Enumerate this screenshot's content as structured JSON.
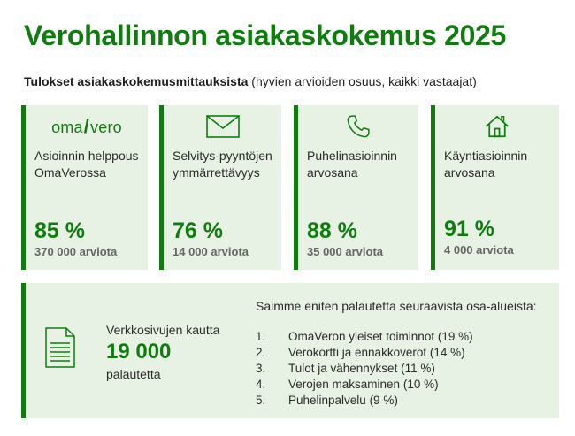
{
  "title": "Verohallinnon asiakaskokemus 2025",
  "subtitle": {
    "bold": "Tulokset asiakaskokemusmittauksista",
    "rest": " (hyvien arvioiden osuus, kaikki vastaajat)"
  },
  "cards": [
    {
      "icon": "omavero-logo",
      "logo_text": {
        "left": "oma",
        "slash": "/",
        "right": "vero"
      },
      "label": "Asioinnin helppous OmaVerossa",
      "percent": "85 %",
      "count": "370 000 arviota"
    },
    {
      "icon": "envelope-icon",
      "label": "Selvitys-pyyntöjen ymmärrettävyys",
      "percent": "76 %",
      "count": "14 000 arviota"
    },
    {
      "icon": "phone-icon",
      "label": "Puhelinasioinnin arvosana",
      "percent": "88 %",
      "count": "35 000 arviota"
    },
    {
      "icon": "house-icon",
      "label": "Käyntiasioinnin arvosana",
      "percent": "91 %",
      "count": "4 000 arviota"
    }
  ],
  "web": {
    "icon": "document-icon",
    "label": "Verkkosivujen kautta",
    "number": "19 000",
    "unit": "palautetta"
  },
  "feedback": {
    "title": "Saimme eniten palautetta seuraavista osa-alueista:",
    "items": [
      {
        "num": "1.",
        "text": "OmaVeron yleiset toiminnot (19 %)"
      },
      {
        "num": "2.",
        "text": "Verokortti ja ennakkoverot (14 %)"
      },
      {
        "num": "3.",
        "text": "Tulot ja vähennykset (11 %)"
      },
      {
        "num": "4.",
        "text": "Verojen maksaminen (10 %)"
      },
      {
        "num": "5.",
        "text": "Puhelinpalvelu (9 %)"
      }
    ]
  },
  "colors": {
    "accent": "#107c10",
    "card_bg": "#e8f2e4",
    "count_gray": "#666666"
  }
}
